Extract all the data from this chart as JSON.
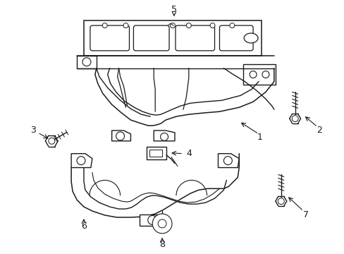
{
  "background_color": "#ffffff",
  "line_color": "#1a1a1a",
  "line_width": 1.0,
  "figure_width": 4.89,
  "figure_height": 3.6,
  "dpi": 100
}
